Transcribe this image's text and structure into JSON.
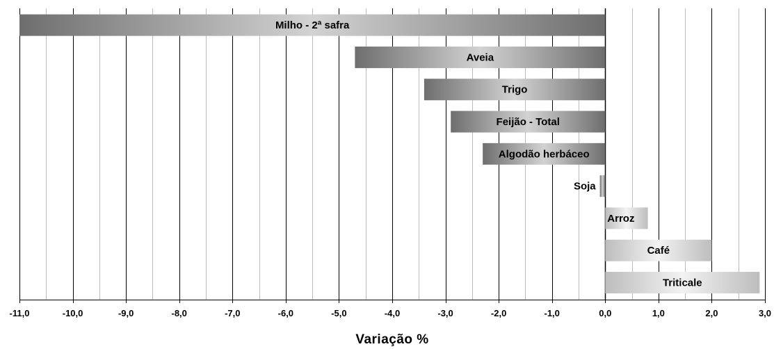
{
  "chart_data": {
    "type": "bar",
    "orientation": "horizontal",
    "xlabel": "Variação %",
    "xlim": [
      -11,
      3
    ],
    "xticks": [
      "-11,0",
      "-10,0",
      "-9,0",
      "-8,0",
      "-7,0",
      "-6,0",
      "-5,0",
      "-4,0",
      "-3,0",
      "-2,0",
      "-1,0",
      "0,0",
      "1,0",
      "2,0",
      "3,0"
    ],
    "grid": "vertical",
    "categories": [
      "Milho - 2ª safra",
      "Aveia",
      "Trigo",
      "Feijão - Total",
      "Algodão herbáceo",
      "Soja",
      "Arroz",
      "Café",
      "Triticale"
    ],
    "values": [
      -11.0,
      -4.7,
      -3.4,
      -2.9,
      -2.3,
      -0.1,
      0.8,
      2.0,
      2.9
    ],
    "colors": {
      "negative": "#7a7a7a",
      "positive": "#c0c0c0"
    }
  }
}
